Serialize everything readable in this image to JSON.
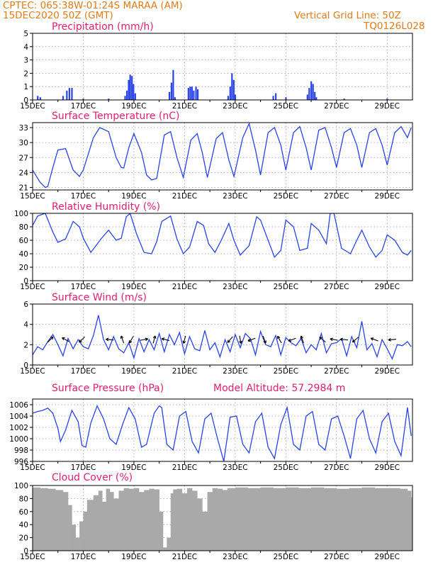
{
  "header": {
    "line1_left": "CPTEC:   065:38W-01:24S   MARAA (AM)",
    "line2_left": "15DEC2020 50Z (GMT)",
    "line1_right": "Vertical Grid Line: 50Z",
    "line2_right": "TQ0126L028"
  },
  "colors": {
    "accent": "#e07b1a",
    "title": "#e0206e",
    "series": "#2a43e6",
    "cloud": "#a9a9a9"
  },
  "x_tick_labels": [
    "15DEC",
    "17DEC",
    "19DEC",
    "21DEC",
    "23DEC",
    "25DEC",
    "27DEC",
    "29DEC"
  ],
  "chart_data": [
    {
      "type": "bar",
      "title": "Precipitation (mm/h)",
      "x_unit": "days from 15DEC",
      "ylim": [
        0,
        5
      ],
      "yticks": [
        "0",
        "1",
        "2",
        "3",
        "4",
        "5"
      ],
      "events": [
        [
          0.2,
          0.3
        ],
        [
          0.3,
          0.2
        ],
        [
          1.2,
          0.3
        ],
        [
          1.35,
          0.7
        ],
        [
          1.45,
          0.9
        ],
        [
          1.55,
          0.9
        ],
        [
          2.0,
          0.1
        ],
        [
          3.0,
          0.1
        ],
        [
          3.65,
          0.3
        ],
        [
          3.72,
          0.7
        ],
        [
          3.79,
          1.5
        ],
        [
          3.85,
          1.9
        ],
        [
          3.92,
          1.8
        ],
        [
          3.98,
          1.2
        ],
        [
          4.05,
          0.5
        ],
        [
          5.4,
          0.6
        ],
        [
          5.48,
          1.3
        ],
        [
          5.55,
          2.25
        ],
        [
          5.62,
          0.2
        ],
        [
          6.15,
          0.9
        ],
        [
          6.22,
          1.0
        ],
        [
          6.29,
          1.0
        ],
        [
          6.36,
          0.7
        ],
        [
          6.45,
          1.0
        ],
        [
          6.52,
          0.8
        ],
        [
          7.72,
          0.3
        ],
        [
          7.8,
          1.0
        ],
        [
          7.87,
          2.0
        ],
        [
          7.94,
          1.5
        ],
        [
          8.0,
          0.4
        ],
        [
          9.5,
          0.3
        ],
        [
          9.6,
          0.5
        ],
        [
          10.0,
          0.2
        ],
        [
          10.85,
          0.4
        ],
        [
          10.92,
          0.9
        ],
        [
          11.0,
          1.4
        ],
        [
          11.07,
          1.2
        ],
        [
          11.14,
          0.6
        ],
        [
          11.2,
          0.2
        ],
        [
          12.3,
          0.1
        ],
        [
          14.0,
          0.1
        ]
      ]
    },
    {
      "type": "line",
      "title": "Surface Temperature (nC)",
      "x_unit": "days from 15DEC",
      "ylim": [
        20.5,
        34
      ],
      "yticks": [
        "21",
        "24",
        "27",
        "30",
        "33"
      ],
      "x": [
        0,
        0.3,
        0.5,
        0.6,
        0.8,
        1.0,
        1.3,
        1.6,
        1.85,
        2.0,
        2.4,
        2.65,
        3.0,
        3.3,
        3.5,
        3.6,
        3.8,
        4.0,
        4.3,
        4.5,
        4.7,
        4.9,
        5.2,
        5.45,
        5.7,
        5.95,
        6.25,
        6.5,
        6.7,
        6.9,
        7.25,
        7.5,
        7.75,
        7.95,
        8.3,
        8.55,
        8.8,
        9.0,
        9.3,
        9.55,
        9.8,
        10.0,
        10.3,
        10.55,
        10.8,
        11.0,
        11.3,
        11.55,
        11.8,
        12.0,
        12.3,
        12.55,
        12.8,
        13.0,
        13.3,
        13.55,
        13.8,
        14.0,
        14.3,
        14.55,
        14.8,
        14.95
      ],
      "y": [
        24.5,
        22.0,
        21.0,
        21.2,
        25.0,
        28.5,
        28.8,
        24.5,
        23.2,
        24.5,
        31.0,
        33.0,
        32.2,
        27.0,
        25.0,
        24.9,
        29.0,
        31.8,
        28.0,
        23.5,
        22.5,
        22.8,
        31.5,
        32.2,
        27.0,
        23.0,
        30.5,
        31.8,
        28.0,
        23.0,
        30.8,
        32.0,
        26.5,
        23.2,
        31.0,
        33.8,
        28.5,
        23.5,
        32.0,
        33.0,
        29.5,
        24.5,
        32.0,
        33.2,
        29.0,
        24.5,
        32.5,
        33.0,
        29.0,
        25.0,
        32.0,
        32.8,
        29.5,
        25.0,
        32.0,
        32.8,
        29.5,
        25.5,
        32.0,
        33.2,
        31.0,
        33.0
      ]
    },
    {
      "type": "line",
      "title": "Relative Humidity (%)",
      "x_unit": "days from 15DEC",
      "ylim": [
        0,
        100
      ],
      "yticks": [
        "0",
        "20",
        "40",
        "60",
        "80",
        "100"
      ],
      "x": [
        0,
        0.2,
        0.5,
        0.8,
        1.0,
        1.3,
        1.6,
        1.85,
        2.0,
        2.3,
        2.7,
        3.0,
        3.3,
        3.5,
        3.7,
        3.85,
        4.1,
        4.4,
        4.7,
        4.9,
        5.1,
        5.45,
        5.7,
        5.95,
        6.2,
        6.5,
        6.75,
        6.95,
        7.2,
        7.45,
        7.75,
        7.95,
        8.2,
        8.55,
        8.85,
        9.0,
        9.3,
        9.55,
        9.8,
        10.0,
        10.3,
        10.55,
        10.85,
        11.0,
        11.3,
        11.6,
        11.75,
        11.9,
        12.2,
        12.55,
        12.8,
        13.0,
        13.3,
        13.55,
        13.8,
        14.0,
        14.3,
        14.6,
        14.8,
        14.95
      ],
      "y": [
        82,
        96,
        100,
        72,
        57,
        62,
        88,
        80,
        63,
        42,
        62,
        75,
        60,
        63,
        95,
        100,
        70,
        42,
        40,
        58,
        88,
        96,
        62,
        40,
        50,
        88,
        82,
        55,
        42,
        60,
        85,
        60,
        38,
        52,
        95,
        90,
        60,
        35,
        45,
        90,
        80,
        45,
        48,
        85,
        75,
        55,
        100,
        100,
        48,
        40,
        60,
        75,
        50,
        35,
        45,
        68,
        60,
        42,
        38,
        45
      ]
    },
    {
      "type": "line",
      "title": "Surface Wind (m/s)",
      "x_unit": "days from 15DEC",
      "ylim": [
        0,
        6
      ],
      "yticks": [
        "0",
        "2",
        "4",
        "6"
      ],
      "x": [
        0,
        0.2,
        0.4,
        0.6,
        0.8,
        1.0,
        1.2,
        1.4,
        1.6,
        1.8,
        2.0,
        2.2,
        2.4,
        2.6,
        2.8,
        3.0,
        3.2,
        3.4,
        3.6,
        3.8,
        4.0,
        4.2,
        4.4,
        4.6,
        4.8,
        5.0,
        5.2,
        5.4,
        5.6,
        5.8,
        6.0,
        6.2,
        6.4,
        6.6,
        6.8,
        7.0,
        7.2,
        7.4,
        7.6,
        7.8,
        8.0,
        8.2,
        8.4,
        8.6,
        8.8,
        9.0,
        9.2,
        9.4,
        9.6,
        9.8,
        10.0,
        10.2,
        10.4,
        10.6,
        10.8,
        11.0,
        11.2,
        11.4,
        11.6,
        11.8,
        12.0,
        12.2,
        12.4,
        12.6,
        12.8,
        13.0,
        13.2,
        13.4,
        13.6,
        13.8,
        14.0,
        14.2,
        14.4,
        14.6,
        14.8,
        14.95
      ],
      "y": [
        1.0,
        1.8,
        1.5,
        2.3,
        3.0,
        2.0,
        0.9,
        2.6,
        1.6,
        2.5,
        1.8,
        1.6,
        2.9,
        4.9,
        2.5,
        1.5,
        2.8,
        1.6,
        1.2,
        2.2,
        0.7,
        2.6,
        1.3,
        2.5,
        1.5,
        3.1,
        1.3,
        3.0,
        2.0,
        3.2,
        1.1,
        2.8,
        1.6,
        1.4,
        3.4,
        1.5,
        2.2,
        0.8,
        2.5,
        1.3,
        3.0,
        1.7,
        3.1,
        2.6,
        1.0,
        3.3,
        2.0,
        1.8,
        2.9,
        1.0,
        2.7,
        2.2,
        1.9,
        2.6,
        1.2,
        2.0,
        1.5,
        3.1,
        1.2,
        2.1,
        2.2,
        2.6,
        0.9,
        2.8,
        1.7,
        4.3,
        1.5,
        2.1,
        0.8,
        2.5,
        1.6,
        0.6,
        2.0,
        1.9,
        2.3,
        1.8
      ],
      "vectors": [
        [
          0.7,
          45
        ],
        [
          1.3,
          150
        ],
        [
          1.95,
          225
        ],
        [
          3.05,
          175
        ],
        [
          3.55,
          110
        ],
        [
          3.9,
          240
        ],
        [
          4.4,
          10
        ],
        [
          4.8,
          75
        ],
        [
          5.25,
          165
        ],
        [
          6.0,
          255
        ],
        [
          7.8,
          230
        ],
        [
          8.2,
          280
        ],
        [
          8.65,
          200
        ],
        [
          9.15,
          290
        ],
        [
          9.75,
          120
        ],
        [
          10.25,
          200
        ],
        [
          10.65,
          110
        ],
        [
          11.45,
          140
        ],
        [
          11.9,
          170
        ],
        [
          12.3,
          175
        ],
        [
          12.75,
          220
        ],
        [
          13.5,
          160
        ],
        [
          14.2,
          185
        ]
      ]
    },
    {
      "type": "line",
      "title": "Surface Pressure (hPa)",
      "annotation": "Model Altitude: 57.2984 m",
      "x_unit": "days from 15DEC",
      "ylim": [
        996,
        1007
      ],
      "yticks": [
        "996",
        "998",
        "1000",
        "1002",
        "1004",
        "1006"
      ],
      "x": [
        0,
        0.2,
        0.4,
        0.6,
        0.8,
        1.0,
        1.1,
        1.3,
        1.55,
        1.8,
        1.95,
        2.1,
        2.3,
        2.55,
        2.8,
        3.05,
        3.3,
        3.55,
        3.8,
        4.05,
        4.3,
        4.5,
        4.8,
        5.0,
        5.1,
        5.3,
        5.55,
        5.8,
        6.05,
        6.3,
        6.55,
        6.8,
        7.05,
        7.3,
        7.55,
        7.8,
        8.05,
        8.3,
        8.55,
        8.8,
        9.05,
        9.3,
        9.55,
        9.8,
        10.05,
        10.3,
        10.55,
        10.8,
        11.05,
        11.3,
        11.55,
        11.8,
        12.05,
        12.3,
        12.55,
        12.8,
        13.05,
        13.3,
        13.55,
        13.8,
        14.05,
        14.3,
        14.55,
        14.8,
        14.95
      ],
      "y": [
        1004.5,
        1004.8,
        1005.0,
        1005.4,
        1004.5,
        1001.8,
        999.5,
        1001.5,
        1005.0,
        1003.0,
        998.8,
        998.5,
        1002.8,
        1005.8,
        1003.5,
        1000.0,
        999.0,
        1002.5,
        1005.5,
        1003.5,
        998.5,
        999.0,
        1004.5,
        1005.8,
        1005.5,
        999.0,
        998.0,
        1004.0,
        1004.8,
        999.5,
        997.5,
        1003.5,
        1004.5,
        1000.0,
        996.0,
        1003.8,
        1004.0,
        999.0,
        997.5,
        1003.0,
        1004.5,
        998.5,
        996.5,
        1002.5,
        1005.5,
        999.0,
        998.0,
        1004.0,
        1004.8,
        999.0,
        998.0,
        1003.5,
        1004.0,
        1000.5,
        996.5,
        1003.5,
        1005.0,
        1000.0,
        997.5,
        1003.0,
        1004.5,
        999.5,
        997.0,
        1005.5,
        1000.5
      ]
    },
    {
      "type": "bar",
      "title": "Cloud Cover (%)",
      "x_unit": "days from 15DEC",
      "ylim": [
        0,
        100
      ],
      "yticks": [
        "0",
        "20",
        "40",
        "60",
        "80",
        "100"
      ],
      "x": [
        0,
        0.3,
        0.6,
        0.9,
        1.2,
        1.4,
        1.55,
        1.7,
        1.85,
        2.0,
        2.15,
        2.4,
        2.6,
        2.75,
        2.9,
        3.05,
        3.2,
        3.4,
        3.6,
        3.8,
        4.0,
        4.2,
        4.4,
        4.6,
        4.8,
        5.0,
        5.15,
        5.3,
        5.45,
        5.55,
        5.7,
        5.9,
        6.1,
        6.3,
        6.5,
        6.7,
        6.9,
        7.1,
        7.3,
        7.5,
        7.7,
        8.0,
        8.5,
        9.0,
        9.5,
        10.0,
        10.5,
        11.0,
        11.5,
        12.0,
        12.5,
        13.0,
        13.5,
        14.0,
        14.5,
        14.8,
        14.95
      ],
      "values": [
        97,
        96,
        95,
        93,
        90,
        70,
        40,
        20,
        45,
        60,
        78,
        85,
        92,
        75,
        95,
        90,
        80,
        92,
        96,
        95,
        96,
        90,
        93,
        95,
        94,
        60,
        5,
        20,
        88,
        94,
        95,
        88,
        96,
        92,
        80,
        60,
        90,
        96,
        95,
        93,
        96,
        97,
        96,
        97,
        96,
        97,
        96,
        97,
        96,
        95,
        96,
        97,
        96,
        96,
        95,
        92,
        82
      ]
    }
  ]
}
